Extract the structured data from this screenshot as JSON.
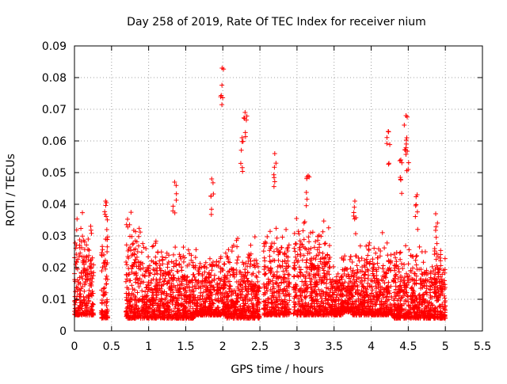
{
  "chart_data": {
    "type": "scatter",
    "title": "Day 258 of 2019, Rate Of TEC Index for receiver nium",
    "xlabel": "GPS time / hours",
    "ylabel": "ROTI / TECUs",
    "xlim": [
      0,
      5.5
    ],
    "ylim": [
      0,
      0.09
    ],
    "x_ticks": [
      "0",
      "0.5",
      "1",
      "1.5",
      "2",
      "2.5",
      "3",
      "3.5",
      "4",
      "4.5",
      "5",
      "5.5"
    ],
    "y_ticks": [
      "0",
      "0.01",
      "0.02",
      "0.03",
      "0.04",
      "0.05",
      "0.06",
      "0.07",
      "0.08",
      "0.09"
    ],
    "grid": true,
    "marker": "+",
    "series": [
      {
        "name": "ROTI",
        "color": "#ff0000",
        "x_range": [
          0,
          5.0
        ],
        "typical_range": [
          0.005,
          0.02
        ],
        "notable_points": [
          {
            "x": 1.99,
            "y": 0.083
          },
          {
            "x": 2.3,
            "y": 0.069
          },
          {
            "x": 2.26,
            "y": 0.061
          },
          {
            "x": 2.7,
            "y": 0.056
          },
          {
            "x": 3.15,
            "y": 0.049
          },
          {
            "x": 4.23,
            "y": 0.063
          },
          {
            "x": 4.47,
            "y": 0.068
          },
          {
            "x": 4.48,
            "y": 0.061
          },
          {
            "x": 4.4,
            "y": 0.054
          },
          {
            "x": 0.42,
            "y": 0.041
          },
          {
            "x": 1.35,
            "y": 0.047
          },
          {
            "x": 1.85,
            "y": 0.048
          },
          {
            "x": 3.78,
            "y": 0.041
          },
          {
            "x": 4.62,
            "y": 0.043
          },
          {
            "x": 4.87,
            "y": 0.037
          }
        ]
      }
    ]
  }
}
